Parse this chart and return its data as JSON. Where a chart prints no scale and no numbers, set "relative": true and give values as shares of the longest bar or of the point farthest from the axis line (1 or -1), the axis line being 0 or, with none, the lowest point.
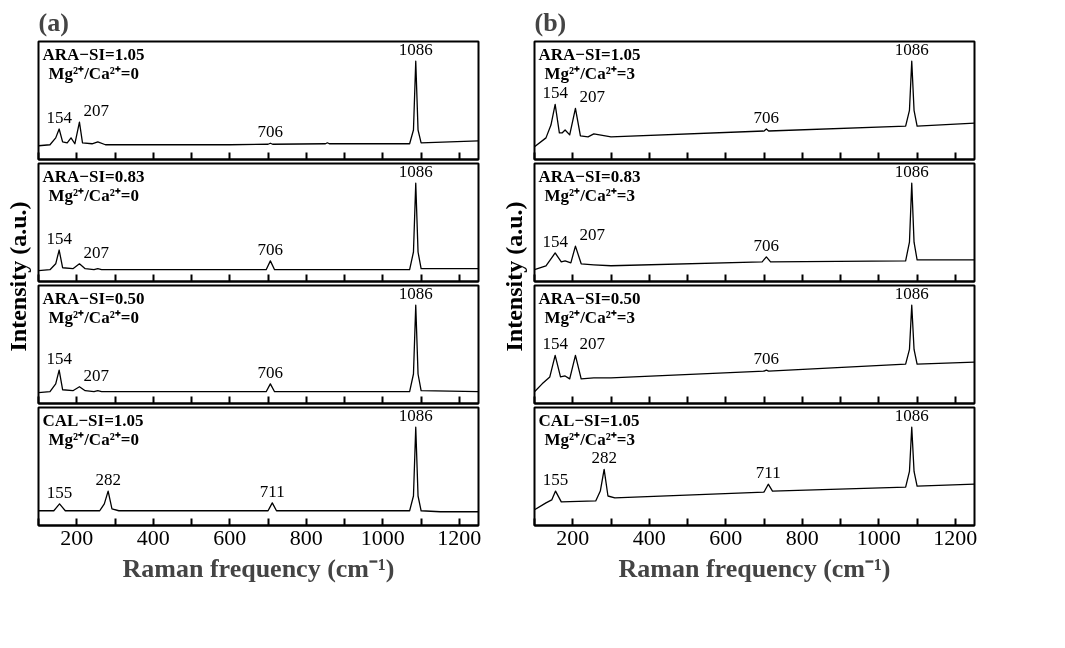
{
  "chart_data": [
    {
      "type": "line",
      "title": "(a)",
      "ylabel": "Intensity (a.u.)",
      "relative": true,
      "tick_labels": false,
      "xlim": [
        100,
        1250
      ],
      "xticks": [
        {
          "value": 100,
          "label": null
        },
        200,
        {
          "value": 300,
          "label": null
        },
        400,
        {
          "value": 500,
          "label": null
        },
        600,
        {
          "value": 700,
          "label": null
        },
        800,
        {
          "value": 900,
          "label": null
        },
        1000,
        {
          "value": 1100,
          "label": null
        },
        1200
      ],
      "x": [
        100,
        130,
        145,
        154,
        163,
        175,
        185,
        195,
        207,
        215,
        240,
        255,
        275,
        400,
        600,
        700,
        706,
        712,
        850,
        855,
        860,
        1070,
        1080,
        1086,
        1092,
        1100,
        1250
      ],
      "series": [
        {
          "color": "#000000",
          "values": [
            0.14,
            0.15,
            0.22,
            0.31,
            0.18,
            0.17,
            0.22,
            0.16,
            0.38,
            0.17,
            0.16,
            0.18,
            0.15,
            0.15,
            0.15,
            0.155,
            0.165,
            0.155,
            0.16,
            0.17,
            0.16,
            0.16,
            0.3,
            1,
            0.3,
            0.17,
            0.19
          ]
        }
      ],
      "annotations": [
        "ARA−SI=1.05",
        "Mg²⁺/Ca²⁺=0",
        {
          "text": "154",
          "x": 154,
          "y": 0.31
        },
        {
          "text": "207",
          "x": 207,
          "y": 0.38
        },
        {
          "text": "706",
          "x": 706,
          "y": 0.165
        },
        {
          "text": "1086",
          "x": 1086,
          "y": 1
        }
      ]
    },
    {
      "type": "line",
      "relative": true,
      "tick_labels": false,
      "xlim": [
        100,
        1250
      ],
      "xticks": [
        {
          "value": 100,
          "label": null
        },
        200,
        {
          "value": 300,
          "label": null
        },
        400,
        {
          "value": 500,
          "label": null
        },
        600,
        {
          "value": 700,
          "label": null
        },
        800,
        {
          "value": 900,
          "label": null
        },
        1000,
        {
          "value": 1100,
          "label": null
        },
        1200
      ],
      "x": [
        100,
        130,
        145,
        154,
        163,
        190,
        207,
        222,
        245,
        255,
        265,
        400,
        600,
        695,
        706,
        717,
        1070,
        1080,
        1086,
        1092,
        1100,
        1250
      ],
      "series": [
        {
          "color": "#000000",
          "values": [
            0.11,
            0.12,
            0.18,
            0.32,
            0.14,
            0.13,
            0.18,
            0.13,
            0.12,
            0.13,
            0.12,
            0.12,
            0.12,
            0.12,
            0.21,
            0.12,
            0.12,
            0.3,
            1,
            0.3,
            0.13,
            0.13
          ]
        }
      ],
      "annotations": [
        "ARA−SI=0.83",
        "Mg²⁺/Ca²⁺=0",
        {
          "text": "154",
          "x": 154,
          "y": 0.32
        },
        {
          "text": "207",
          "x": 207,
          "y": 0.18
        },
        {
          "text": "706",
          "x": 706,
          "y": 0.21
        },
        {
          "text": "1086",
          "x": 1086,
          "y": 1
        }
      ]
    },
    {
      "type": "line",
      "relative": true,
      "tick_labels": false,
      "xlim": [
        100,
        1250
      ],
      "xticks": [
        {
          "value": 100,
          "label": null
        },
        200,
        {
          "value": 300,
          "label": null
        },
        400,
        {
          "value": 500,
          "label": null
        },
        600,
        {
          "value": 700,
          "label": null
        },
        800,
        {
          "value": 900,
          "label": null
        },
        1000,
        {
          "value": 1100,
          "label": null
        },
        1200
      ],
      "x": [
        100,
        130,
        145,
        154,
        163,
        190,
        207,
        222,
        245,
        255,
        265,
        400,
        600,
        695,
        706,
        717,
        1070,
        1080,
        1086,
        1092,
        1100,
        1250
      ],
      "series": [
        {
          "color": "#000000",
          "values": [
            0.11,
            0.12,
            0.2,
            0.34,
            0.14,
            0.13,
            0.17,
            0.13,
            0.12,
            0.13,
            0.12,
            0.12,
            0.12,
            0.12,
            0.2,
            0.12,
            0.12,
            0.3,
            1,
            0.3,
            0.13,
            0.12
          ]
        }
      ],
      "annotations": [
        "ARA−SI=0.50",
        "Mg²⁺/Ca²⁺=0",
        {
          "text": "154",
          "x": 154,
          "y": 0.34
        },
        {
          "text": "207",
          "x": 207,
          "y": 0.17
        },
        {
          "text": "706",
          "x": 706,
          "y": 0.2
        },
        {
          "text": "1086",
          "x": 1086,
          "y": 1
        }
      ]
    },
    {
      "type": "line",
      "relative": true,
      "tick_labels": "x",
      "xlabel": "Raman frequency (cm⁻¹)",
      "xlim": [
        100,
        1250
      ],
      "xticks": [
        {
          "value": 100,
          "label": null
        },
        200,
        {
          "value": 300,
          "label": null
        },
        400,
        {
          "value": 500,
          "label": null
        },
        600,
        {
          "value": 700,
          "label": null
        },
        800,
        {
          "value": 900,
          "label": null
        },
        1000,
        {
          "value": 1100,
          "label": null
        },
        1200
      ],
      "x": [
        100,
        140,
        155,
        170,
        260,
        272,
        282,
        292,
        310,
        500,
        700,
        711,
        722,
        1070,
        1080,
        1086,
        1092,
        1100,
        1150,
        1250
      ],
      "series": [
        {
          "color": "#000000",
          "values": [
            0.15,
            0.15,
            0.22,
            0.15,
            0.15,
            0.22,
            0.35,
            0.17,
            0.15,
            0.15,
            0.15,
            0.23,
            0.15,
            0.15,
            0.3,
            1,
            0.3,
            0.15,
            0.14,
            0.14
          ]
        }
      ],
      "annotations": [
        "CAL−SI=1.05",
        "Mg²⁺/Ca²⁺=0",
        {
          "text": "155",
          "x": 155,
          "y": 0.22
        },
        {
          "text": "282",
          "x": 282,
          "y": 0.35
        },
        {
          "text": "711",
          "x": 711,
          "y": 0.23
        },
        {
          "text": "1086",
          "x": 1086,
          "y": 1
        }
      ]
    },
    {
      "type": "line",
      "title": "(b)",
      "ylabel": "Intensity (a.u.)",
      "relative": true,
      "tick_labels": false,
      "xlim": [
        100,
        1250
      ],
      "xticks": [
        {
          "value": 100,
          "label": null
        },
        200,
        {
          "value": 300,
          "label": null
        },
        400,
        {
          "value": 500,
          "label": null
        },
        600,
        {
          "value": 700,
          "label": null
        },
        800,
        {
          "value": 900,
          "label": null
        },
        1000,
        {
          "value": 1100,
          "label": null
        },
        1200
      ],
      "x": [
        100,
        130,
        143,
        154,
        165,
        172,
        180,
        192,
        207,
        220,
        240,
        255,
        300,
        700,
        706,
        712,
        1070,
        1080,
        1086,
        1092,
        1100,
        1250
      ],
      "series": [
        {
          "color": "#000000",
          "values": [
            0.13,
            0.22,
            0.35,
            0.56,
            0.27,
            0.27,
            0.3,
            0.25,
            0.52,
            0.24,
            0.23,
            0.26,
            0.23,
            0.29,
            0.31,
            0.29,
            0.34,
            0.5,
            1,
            0.5,
            0.34,
            0.37
          ]
        }
      ],
      "annotations": [
        "ARA−SI=1.05",
        "Mg²⁺/Ca²⁺=3",
        {
          "text": "154",
          "x": 154,
          "y": 0.56
        },
        {
          "text": "207",
          "x": 207,
          "y": 0.52
        },
        {
          "text": "706",
          "x": 706,
          "y": 0.31
        },
        {
          "text": "1086",
          "x": 1086,
          "y": 1
        }
      ]
    },
    {
      "type": "line",
      "relative": true,
      "tick_labels": false,
      "xlim": [
        100,
        1250
      ],
      "xticks": [
        {
          "value": 100,
          "label": null
        },
        200,
        {
          "value": 300,
          "label": null
        },
        400,
        {
          "value": 500,
          "label": null
        },
        600,
        {
          "value": 700,
          "label": null
        },
        800,
        {
          "value": 900,
          "label": null
        },
        1000,
        {
          "value": 1100,
          "label": null
        },
        1200
      ],
      "x": [
        100,
        130,
        154,
        170,
        180,
        195,
        207,
        222,
        255,
        300,
        695,
        706,
        717,
        1070,
        1080,
        1086,
        1092,
        1100,
        1250
      ],
      "series": [
        {
          "color": "#000000",
          "values": [
            0.12,
            0.16,
            0.29,
            0.2,
            0.21,
            0.19,
            0.36,
            0.18,
            0.17,
            0.16,
            0.2,
            0.25,
            0.2,
            0.21,
            0.4,
            1,
            0.4,
            0.22,
            0.22
          ]
        }
      ],
      "annotations": [
        "ARA−SI=0.83",
        "Mg²⁺/Ca²⁺=3",
        {
          "text": "154",
          "x": 154,
          "y": 0.29
        },
        {
          "text": "207",
          "x": 207,
          "y": 0.36
        },
        {
          "text": "706",
          "x": 706,
          "y": 0.25
        },
        {
          "text": "1086",
          "x": 1086,
          "y": 1
        }
      ]
    },
    {
      "type": "line",
      "relative": true,
      "tick_labels": false,
      "xlim": [
        100,
        1250
      ],
      "xticks": [
        {
          "value": 100,
          "label": null
        },
        200,
        {
          "value": 300,
          "label": null
        },
        400,
        {
          "value": 500,
          "label": null
        },
        600,
        {
          "value": 700,
          "label": null
        },
        800,
        {
          "value": 900,
          "label": null
        },
        1000,
        {
          "value": 1100,
          "label": null
        },
        1200
      ],
      "x": [
        100,
        120,
        140,
        154,
        168,
        180,
        192,
        207,
        222,
        255,
        300,
        700,
        706,
        712,
        1070,
        1080,
        1086,
        1092,
        1100,
        1250
      ],
      "series": [
        {
          "color": "#000000",
          "values": [
            0.12,
            0.2,
            0.27,
            0.49,
            0.27,
            0.28,
            0.25,
            0.49,
            0.25,
            0.26,
            0.26,
            0.33,
            0.34,
            0.33,
            0.4,
            0.55,
            1,
            0.55,
            0.4,
            0.42
          ]
        }
      ],
      "annotations": [
        "ARA−SI=0.50",
        "Mg²⁺/Ca²⁺=3",
        {
          "text": "154",
          "x": 154,
          "y": 0.49
        },
        {
          "text": "207",
          "x": 207,
          "y": 0.49
        },
        {
          "text": "706",
          "x": 706,
          "y": 0.34
        },
        {
          "text": "1086",
          "x": 1086,
          "y": 1
        }
      ]
    },
    {
      "type": "line",
      "relative": true,
      "tick_labels": "x",
      "xlabel": "Raman frequency (cm⁻¹)",
      "xlim": [
        100,
        1250
      ],
      "xticks": [
        {
          "value": 100,
          "label": null
        },
        200,
        {
          "value": 300,
          "label": null
        },
        400,
        {
          "value": 500,
          "label": null
        },
        600,
        {
          "value": 700,
          "label": null
        },
        800,
        {
          "value": 900,
          "label": null
        },
        1000,
        {
          "value": 1100,
          "label": null
        },
        1200
      ],
      "x": [
        100,
        130,
        145,
        155,
        170,
        260,
        272,
        282,
        292,
        310,
        700,
        711,
        722,
        1070,
        1080,
        1086,
        1092,
        1100,
        1250
      ],
      "series": [
        {
          "color": "#000000",
          "values": [
            0.16,
            0.23,
            0.26,
            0.35,
            0.24,
            0.25,
            0.35,
            0.57,
            0.3,
            0.28,
            0.34,
            0.42,
            0.35,
            0.39,
            0.55,
            1,
            0.55,
            0.4,
            0.42
          ]
        }
      ],
      "annotations": [
        "CAL−SI=1.05",
        "Mg²⁺/Ca²⁺=3",
        {
          "text": "155",
          "x": 155,
          "y": 0.35
        },
        {
          "text": "282",
          "x": 282,
          "y": 0.57
        },
        {
          "text": "711",
          "x": 711,
          "y": 0.42
        },
        {
          "text": "1086",
          "x": 1086,
          "y": 1
        }
      ]
    }
  ]
}
